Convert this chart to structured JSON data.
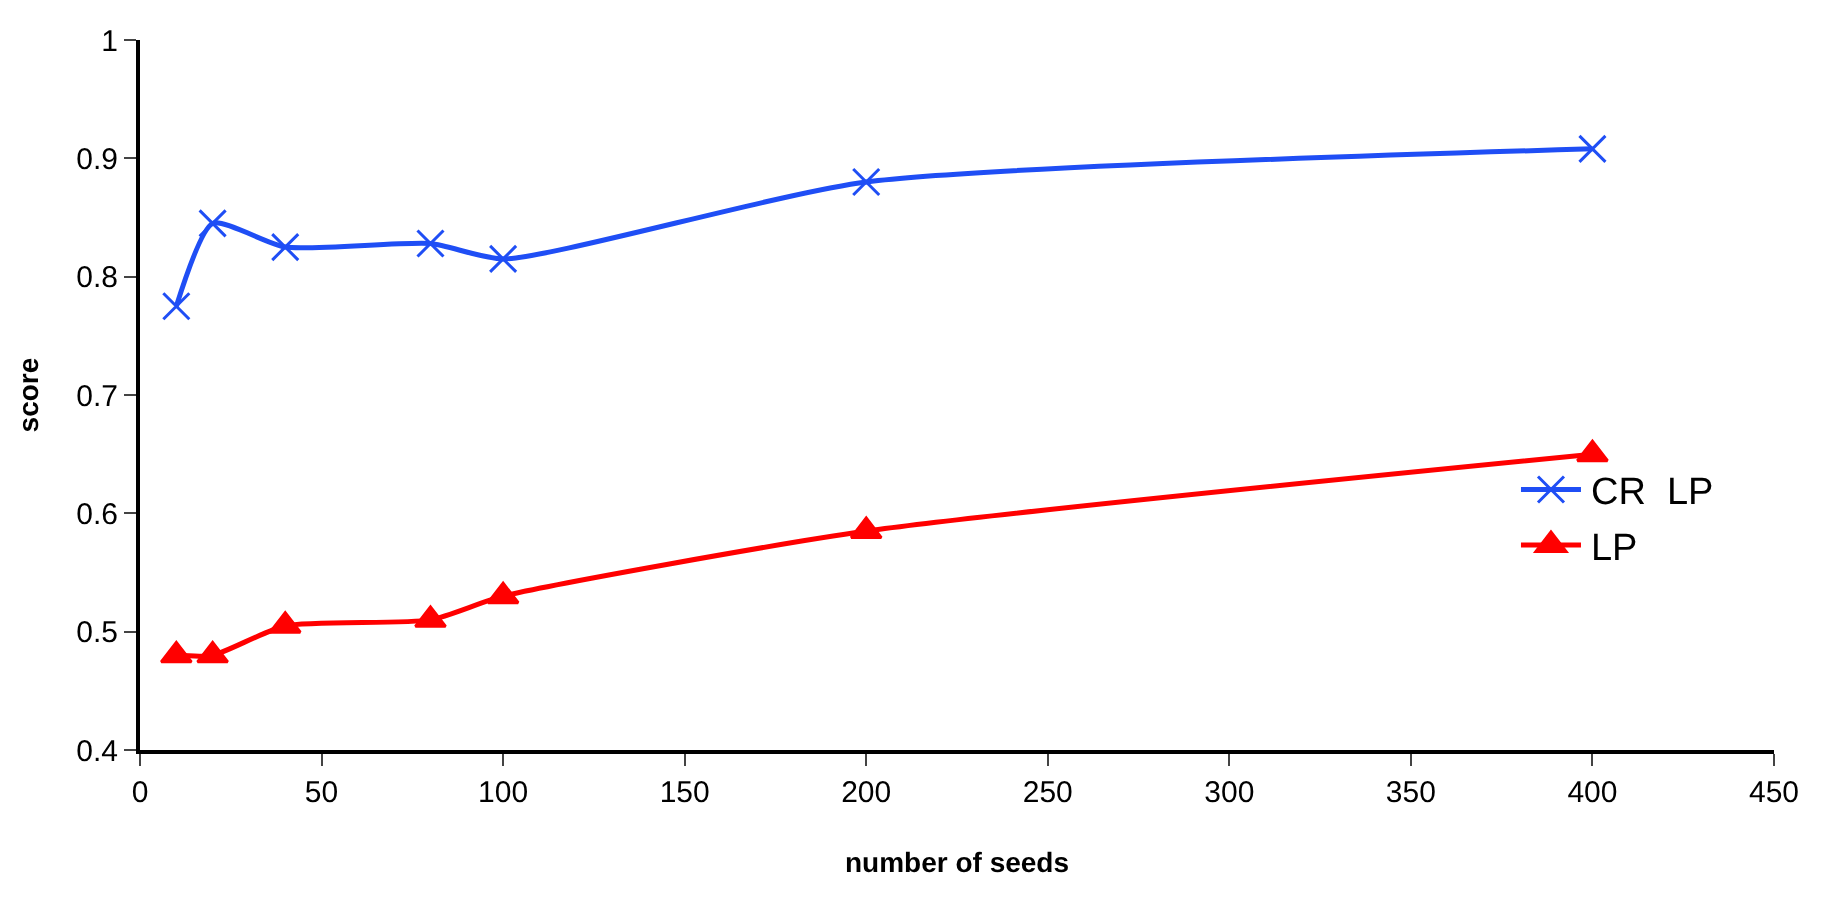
{
  "chart_data": {
    "type": "line",
    "xlabel": "number of seeds",
    "ylabel": "score",
    "x": [
      10,
      20,
      40,
      80,
      100,
      200,
      400
    ],
    "series": [
      {
        "name": "CR  LP",
        "color": "#1f4ef5",
        "marker": "cross",
        "values": [
          0.775,
          0.845,
          0.825,
          0.828,
          0.815,
          0.88,
          0.908
        ]
      },
      {
        "name": "LP",
        "color": "#ff0000",
        "marker": "triangle",
        "values": [
          0.48,
          0.48,
          0.505,
          0.51,
          0.53,
          0.585,
          0.65
        ]
      }
    ],
    "xlim": [
      0,
      450
    ],
    "xticks": [
      0,
      50,
      100,
      150,
      200,
      250,
      300,
      350,
      400,
      450
    ],
    "ylim": [
      0.4,
      1
    ],
    "yticks": [
      0.4,
      0.5,
      0.6,
      0.7,
      0.8,
      0.9,
      1
    ],
    "legend": "right",
    "line_style": "solid"
  }
}
